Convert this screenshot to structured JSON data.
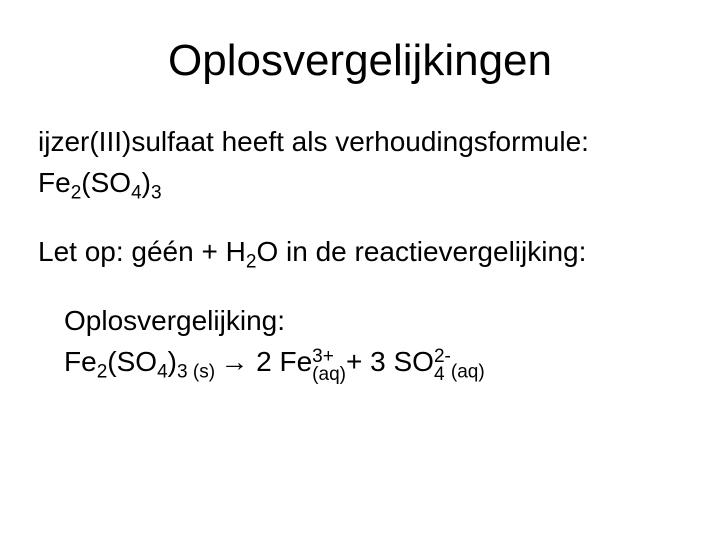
{
  "title": "Oplosvergelijkingen",
  "line1_part1": "ijzer(III)sulfaat heeft als verhoudingsformule:",
  "formula1": {
    "fe": "Fe",
    "fe_sub": "2",
    "open": "(SO",
    "so_sub": "4",
    "close": ")",
    "outer_sub": "3"
  },
  "line2_a": "Let op: ",
  "line2_b": "géén",
  "line2_c": " + H",
  "line2_h2o_sub": "2",
  "line2_d": "O in de reactievergelijking:",
  "line3_label": "Oplosvergelijking:",
  "eq": {
    "fe": "Fe",
    "fe_sub": "2",
    "open": "(SO",
    "so_sub": "4",
    "close": ")",
    "outer_sub": "3",
    "phase_s": " (s) ",
    "arrow": "→",
    "sp1": "  2 Fe",
    "fe_charge": "3+",
    "aq1": "(aq) ",
    "plus": "+ 3 SO",
    "so4_sub": "4",
    "so4_charge": "2-",
    "aq2": "(aq)"
  }
}
